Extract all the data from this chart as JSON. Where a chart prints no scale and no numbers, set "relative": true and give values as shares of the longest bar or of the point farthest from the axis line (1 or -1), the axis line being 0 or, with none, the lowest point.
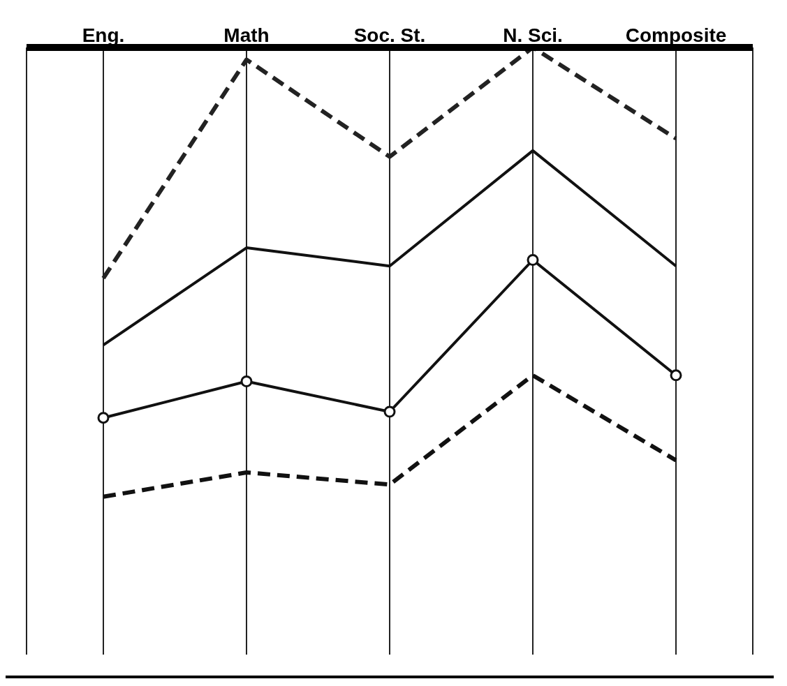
{
  "chart_data": {
    "type": "line",
    "relative": true,
    "grid": "x",
    "categories": [
      "Eng.",
      "Math",
      "Soc. St.",
      "N. Sci.",
      "Composite"
    ],
    "series": [
      {
        "color": "#222222",
        "line_style": "dashed",
        "marker": "none",
        "values": [
          0.62,
          0.98,
          0.82,
          1,
          0.85
        ]
      },
      {
        "color": "#111111",
        "line_style": "solid",
        "marker": "none",
        "values": [
          0.51,
          0.67,
          0.64,
          0.83,
          0.64
        ]
      },
      {
        "color": "#111111",
        "line_style": "solid",
        "marker": "circle",
        "values": [
          0.39,
          0.45,
          0.4,
          0.65,
          0.46
        ]
      },
      {
        "color": "#111111",
        "line_style": "dashed",
        "marker": "none",
        "values": [
          0.26,
          0.3,
          0.28,
          0.46,
          0.32
        ]
      }
    ]
  }
}
